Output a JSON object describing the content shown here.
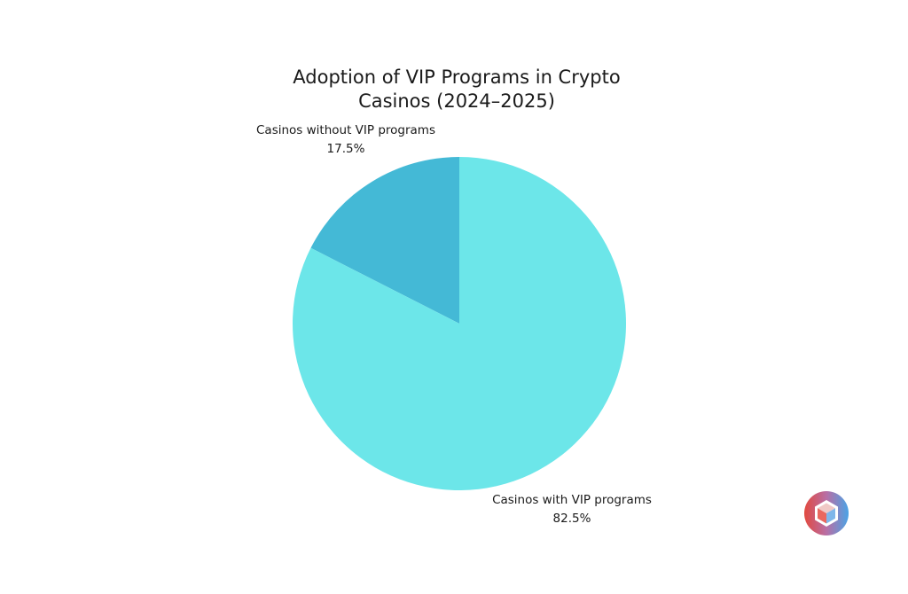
{
  "chart_data": {
    "type": "pie",
    "title_lines": [
      "Adoption of VIP Programs in Crypto",
      "Casinos (2024–2025)"
    ],
    "categories": [
      "Casinos without VIP programs",
      "Casinos with VIP programs"
    ],
    "values": [
      17.5,
      82.5
    ],
    "value_labels": [
      "17.5%",
      "82.5%"
    ],
    "colors": [
      "#44b9d6",
      "#6ce6e9"
    ],
    "start_angle_deg": 0,
    "direction": "counterclockwise"
  },
  "logo": {
    "icon": "cube-logo-icon",
    "colors": [
      "#e2493f",
      "#4aa3e6"
    ]
  }
}
